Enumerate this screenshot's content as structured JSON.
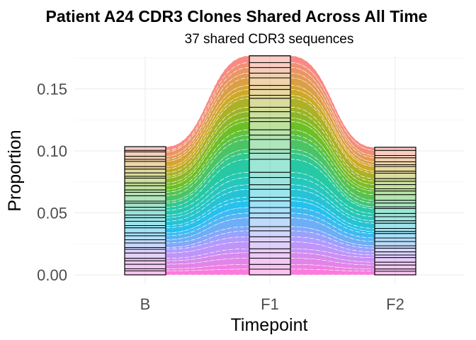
{
  "chart_data": {
    "type": "area",
    "title": "Patient A24 CDR3 Clones Shared Across All Time",
    "subtitle": "37 shared CDR3 sequences",
    "xlabel": "Timepoint",
    "ylabel": "Proportion",
    "categories": [
      "B",
      "F1",
      "F2"
    ],
    "ylim": [
      -0.008,
      0.176
    ],
    "yticks": [
      "0.00",
      "0.05",
      "0.10",
      "0.15"
    ],
    "yticks_values": [
      0,
      0.05,
      0.1,
      0.15
    ],
    "grid": true,
    "legend": "none",
    "palette": [
      "#F8766D",
      "#C49A00",
      "#53B400",
      "#00C094",
      "#00B6EB",
      "#A58AFF",
      "#FB61D7"
    ],
    "series": [
      {
        "values": [
          0.003,
          0.0055,
          0.0025
        ]
      },
      {
        "values": [
          0.0012,
          0.004,
          0.0041
        ]
      },
      {
        "values": [
          0.0036,
          0.0045,
          0.0019
        ]
      },
      {
        "values": [
          0.0024,
          0.0038,
          0.0032
        ]
      },
      {
        "values": [
          0.0017,
          0.0061,
          0.0023
        ]
      },
      {
        "values": [
          0.0042,
          0.0033,
          0.0015
        ]
      },
      {
        "values": [
          0.002,
          0.0047,
          0.0038
        ]
      },
      {
        "values": [
          0.0031,
          0.0024,
          0.0016
        ]
      },
      {
        "values": [
          0.0027,
          0.0072,
          0.0044
        ]
      },
      {
        "values": [
          0.0015,
          0.0036,
          0.0021
        ]
      },
      {
        "values": [
          0.0039,
          0.0051,
          0.0027
        ]
      },
      {
        "values": [
          0.0022,
          0.0029,
          0.0034
        ]
      },
      {
        "values": [
          0.0034,
          0.0066,
          0.0018
        ]
      },
      {
        "values": [
          0.0019,
          0.0043,
          0.0029
        ]
      },
      {
        "values": [
          0.0028,
          0.0035,
          0.0046
        ]
      },
      {
        "values": [
          0.0044,
          0.008,
          0.0022
        ]
      },
      {
        "values": [
          0.0016,
          0.0031,
          0.0031
        ]
      },
      {
        "values": [
          0.0033,
          0.0049,
          0.0014
        ]
      },
      {
        "values": [
          0.0025,
          0.0105,
          0.0039
        ]
      },
      {
        "values": [
          0.0038,
          0.0042,
          0.0026
        ]
      },
      {
        "values": [
          0.0021,
          0.0058,
          0.0033
        ]
      },
      {
        "values": [
          0.0029,
          0.0037,
          0.002
        ]
      },
      {
        "values": [
          0.0035,
          0.0064,
          0.0042
        ]
      },
      {
        "values": [
          0.0018,
          0.003,
          0.0024
        ]
      },
      {
        "values": [
          0.0041,
          0.0053,
          0.0017
        ]
      },
      {
        "values": [
          0.0023,
          0.0045,
          0.0036
        ]
      },
      {
        "values": [
          0.0032,
          0.0039,
          0.0028
        ]
      },
      {
        "values": [
          0.0026,
          0.007,
          0.0035
        ]
      },
      {
        "values": [
          0.0037,
          0.0034,
          0.0019
        ]
      },
      {
        "values": [
          0.0014,
          0.0048,
          0.003
        ]
      },
      {
        "values": [
          0.003,
          0.0041,
          0.0025
        ]
      },
      {
        "values": [
          0.0043,
          0.0056,
          0.0021
        ]
      },
      {
        "values": [
          0.002,
          0.0032,
          0.0037
        ]
      },
      {
        "values": [
          0.0028,
          0.0044,
          0.0023
        ]
      },
      {
        "values": [
          0.0036,
          0.005,
          0.0032
        ]
      },
      {
        "values": [
          0.0017,
          0.0038,
          0.0018
        ]
      },
      {
        "values": [
          0.0032,
          0.0046,
          0.0029
        ]
      }
    ]
  }
}
